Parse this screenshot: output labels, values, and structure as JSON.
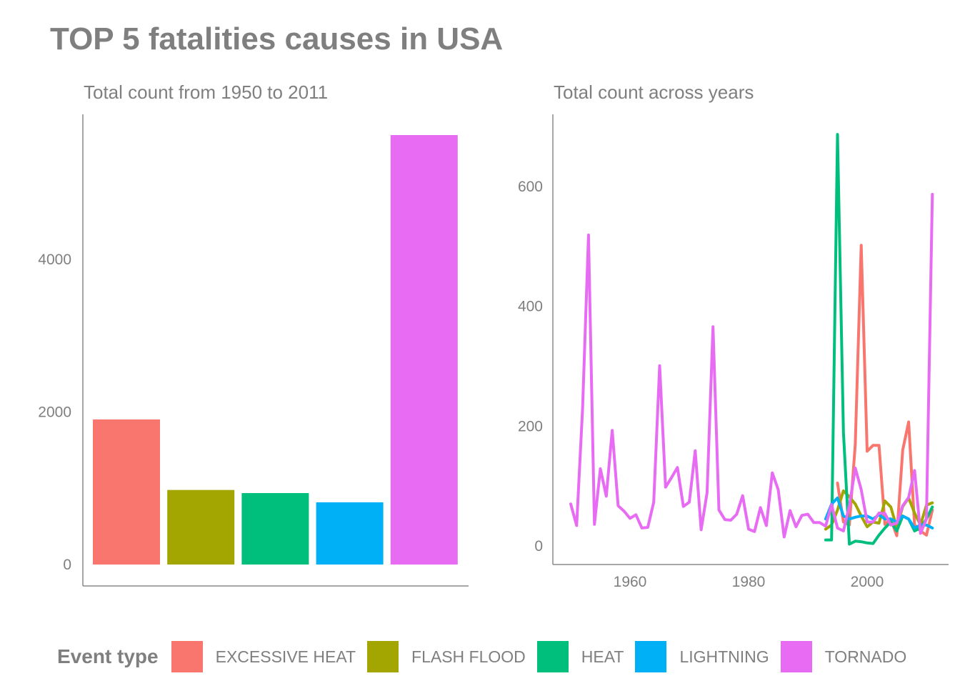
{
  "title": "TOP 5 fatalities causes in USA",
  "legend": {
    "title": "Event type",
    "items": [
      {
        "label": "EXCESSIVE HEAT",
        "color": "#F8766D"
      },
      {
        "label": "FLASH FLOOD",
        "color": "#A3A500"
      },
      {
        "label": "HEAT",
        "color": "#00BF7D"
      },
      {
        "label": "LIGHTNING",
        "color": "#00B0F6"
      },
      {
        "label": "TORNADO",
        "color": "#E76BF3"
      }
    ]
  },
  "chart_data": [
    {
      "type": "bar",
      "subtitle": "Total count from 1950 to 2011",
      "categories": [
        "EXCESSIVE HEAT",
        "FLASH FLOOD",
        "HEAT",
        "LIGHTNING",
        "TORNADO"
      ],
      "values": [
        1903,
        978,
        937,
        816,
        5633
      ],
      "colors": [
        "#F8766D",
        "#A3A500",
        "#00BF7D",
        "#00B0F6",
        "#E76BF3"
      ],
      "ylim": [
        0,
        5900
      ],
      "yticks": [
        0,
        2000,
        4000
      ],
      "grid": false,
      "legend": "bottom"
    },
    {
      "type": "line",
      "subtitle": "Total count across years",
      "xlim": [
        1948,
        2012
      ],
      "ylim": [
        -30,
        720
      ],
      "xticks": [
        1960,
        1980,
        2000
      ],
      "yticks": [
        0,
        200,
        400,
        600
      ],
      "grid": false,
      "legend": "bottom",
      "series": [
        {
          "name": "EXCESSIVE HEAT",
          "color": "#F8766D",
          "x": [
            1995,
            1996,
            1997,
            1998,
            1999,
            2000,
            2001,
            2002,
            2003,
            2004,
            2005,
            2006,
            2007,
            2008,
            2009,
            2010,
            2011
          ],
          "y": [
            105,
            40,
            35,
            170,
            502,
            158,
            168,
            168,
            36,
            45,
            17,
            160,
            207,
            35,
            25,
            18,
            60
          ]
        },
        {
          "name": "FLASH FLOOD",
          "color": "#A3A500",
          "x": [
            1993,
            1994,
            1995,
            1996,
            1997,
            1998,
            1999,
            2000,
            2001,
            2002,
            2003,
            2004,
            2005,
            2006,
            2007,
            2008,
            2009,
            2010,
            2011
          ],
          "y": [
            28,
            35,
            60,
            92,
            82,
            70,
            50,
            32,
            40,
            38,
            75,
            65,
            30,
            66,
            80,
            55,
            35,
            68,
            72
          ]
        },
        {
          "name": "HEAT",
          "color": "#00BF7D",
          "x": [
            1993,
            1994,
            1995,
            1996,
            1997,
            1998,
            1999,
            2000,
            2001,
            2002,
            2003,
            2004,
            2005,
            2006,
            2007,
            2008,
            2009,
            2010,
            2011
          ],
          "y": [
            10,
            10,
            687,
            190,
            3,
            8,
            7,
            5,
            4,
            18,
            30,
            40,
            25,
            50,
            45,
            25,
            30,
            45,
            65
          ]
        },
        {
          "name": "LIGHTNING",
          "color": "#00B0F6",
          "x": [
            1993,
            1994,
            1995,
            1996,
            1997,
            1998,
            1999,
            2000,
            2001,
            2002,
            2003,
            2004,
            2005,
            2006,
            2007,
            2008,
            2009,
            2010,
            2011
          ],
          "y": [
            45,
            70,
            80,
            50,
            45,
            48,
            50,
            50,
            45,
            52,
            45,
            45,
            40,
            50,
            45,
            30,
            35,
            35,
            30
          ]
        },
        {
          "name": "TORNADO",
          "color": "#E76BF3",
          "x": [
            1950,
            1951,
            1952,
            1953,
            1954,
            1955,
            1956,
            1957,
            1958,
            1959,
            1960,
            1961,
            1962,
            1963,
            1964,
            1965,
            1966,
            1967,
            1968,
            1969,
            1970,
            1971,
            1972,
            1973,
            1974,
            1975,
            1976,
            1977,
            1978,
            1979,
            1980,
            1981,
            1982,
            1983,
            1984,
            1985,
            1986,
            1987,
            1988,
            1989,
            1990,
            1991,
            1992,
            1993,
            1994,
            1995,
            1996,
            1997,
            1998,
            1999,
            2000,
            2001,
            2002,
            2003,
            2004,
            2005,
            2006,
            2007,
            2008,
            2009,
            2010,
            2011
          ],
          "y": [
            70,
            34,
            229,
            519,
            36,
            129,
            83,
            193,
            67,
            58,
            46,
            52,
            30,
            31,
            73,
            301,
            98,
            114,
            131,
            66,
            73,
            159,
            27,
            89,
            366,
            60,
            44,
            43,
            53,
            84,
            28,
            24,
            64,
            34,
            122,
            94,
            15,
            59,
            32,
            51,
            53,
            39,
            39,
            33,
            69,
            30,
            25,
            67,
            130,
            94,
            40,
            40,
            55,
            54,
            35,
            38,
            67,
            81,
            126,
            21,
            45,
            587
          ]
        }
      ]
    }
  ]
}
